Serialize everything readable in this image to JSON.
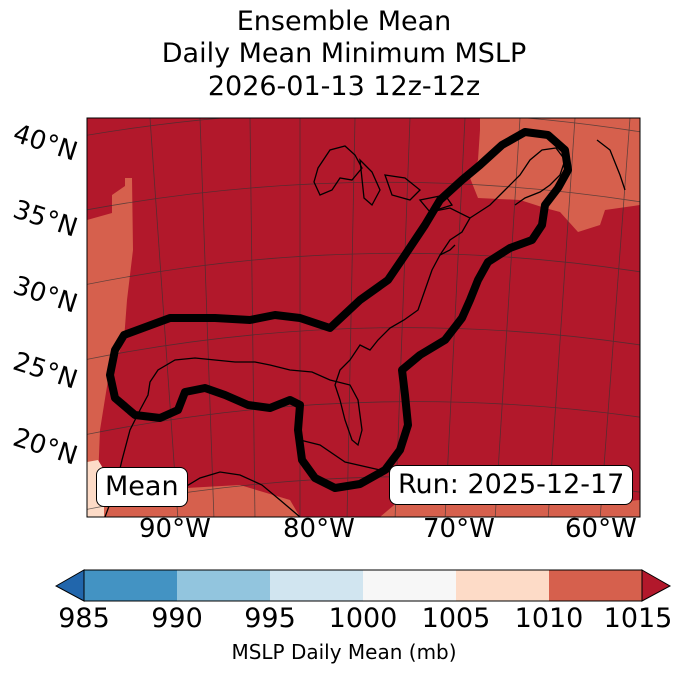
{
  "title": {
    "line1": "Ensemble Mean",
    "line2": "Daily Mean Minimum MSLP",
    "line3": "2026-01-13 12z-12z"
  },
  "map": {
    "latitude_labels": [
      "40°N",
      "35°N",
      "30°N",
      "25°N",
      "20°N"
    ],
    "longitude_labels": [
      "90°W",
      "80°W",
      "70°W",
      "60°W"
    ],
    "mean_label": "Mean",
    "run_label": "Run: 2025-12-17",
    "colors": {
      "1010_1015": "#b2182b",
      "1005_1010": "#d6604d",
      "1000_1005": "#fddbc7",
      "contour": "#000000"
    }
  },
  "colorbar": {
    "ticks": [
      "985",
      "990",
      "995",
      "1000",
      "1005",
      "1010",
      "1015"
    ],
    "colors": [
      "#2166ac",
      "#4393c3",
      "#92c5de",
      "#d1e5f0",
      "#f7f7f7",
      "#fddbc7",
      "#d6604d",
      "#b2182b"
    ],
    "label": "MSLP Daily Mean (mb)"
  }
}
